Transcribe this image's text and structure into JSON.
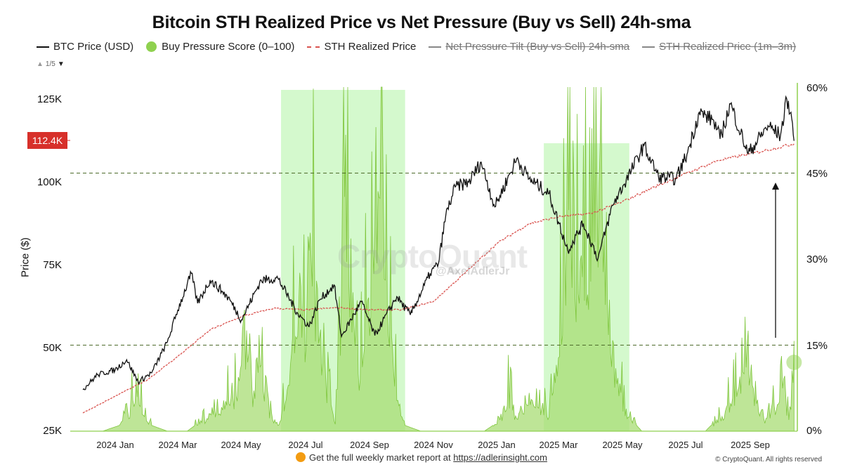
{
  "chart_data": {
    "type": "line",
    "title": "Bitcoin STH Realized Price vs Net Pressure (Buy vs Sell) 24h-sma",
    "ylabel": "Price ($)",
    "ylim": [
      25000,
      125000
    ],
    "y2lim": [
      0,
      60
    ],
    "yticks_left": [
      "125K",
      "100K",
      "75K",
      "50K",
      "25K"
    ],
    "yticks_right": [
      "60%",
      "45%",
      "30%",
      "15%",
      "0%"
    ],
    "xticks": [
      "2024 Jan",
      "2024 Mar",
      "2024 May",
      "2024 Jul",
      "2024 Sep",
      "2024 Nov",
      "2025 Jan",
      "2025 Mar",
      "2025 May",
      "2025 Jul",
      "2025 Sep"
    ],
    "current_price_label": "112.4K",
    "legend": [
      {
        "label": "BTC Price (USD)",
        "type": "line",
        "color": "#111111",
        "visible": true
      },
      {
        "label": "Buy Pressure Score (0–100)",
        "type": "dot",
        "color": "#8fd14f",
        "visible": true
      },
      {
        "label": "STH Realized Price",
        "type": "dashed",
        "color": "#d9534f",
        "visible": true
      },
      {
        "label": "Net Pressure Tilt (Buy vs Sell) 24h-sma",
        "type": "line",
        "color": "#888888",
        "visible": false
      },
      {
        "label": "STH Realized Price (1m–3m)",
        "type": "line",
        "color": "#888888",
        "visible": false
      }
    ],
    "reference_lines_right_pct": [
      45,
      15
    ],
    "highlight_ranges": [
      [
        "2024-06-08",
        "2024-10-05"
      ],
      [
        "2025-02-15",
        "2025-05-08"
      ]
    ],
    "series": [
      {
        "name": "BTC Price (USD)",
        "axis": "left",
        "points": [
          [
            "2023-12-01",
            37500
          ],
          [
            "2023-12-15",
            42000
          ],
          [
            "2024-01-01",
            43500
          ],
          [
            "2024-01-12",
            46500
          ],
          [
            "2024-01-23",
            39800
          ],
          [
            "2024-02-05",
            42600
          ],
          [
            "2024-02-20",
            51800
          ],
          [
            "2024-03-01",
            61500
          ],
          [
            "2024-03-14",
            72500
          ],
          [
            "2024-03-20",
            63500
          ],
          [
            "2024-04-01",
            70500
          ],
          [
            "2024-04-13",
            67000
          ],
          [
            "2024-04-20",
            64500
          ],
          [
            "2024-05-01",
            58500
          ],
          [
            "2024-05-20",
            70500
          ],
          [
            "2024-06-05",
            71000
          ],
          [
            "2024-06-24",
            60500
          ],
          [
            "2024-07-05",
            56500
          ],
          [
            "2024-07-15",
            64500
          ],
          [
            "2024-07-29",
            69000
          ],
          [
            "2024-08-05",
            53500
          ],
          [
            "2024-08-24",
            64000
          ],
          [
            "2024-09-06",
            53800
          ],
          [
            "2024-09-27",
            65500
          ],
          [
            "2024-10-10",
            60000
          ],
          [
            "2024-10-29",
            72500
          ],
          [
            "2024-11-06",
            75500
          ],
          [
            "2024-11-13",
            90000
          ],
          [
            "2024-11-22",
            98500
          ],
          [
            "2024-12-05",
            100000
          ],
          [
            "2024-12-17",
            106000
          ],
          [
            "2024-12-30",
            92500
          ],
          [
            "2025-01-20",
            107000
          ],
          [
            "2025-02-01",
            101000
          ],
          [
            "2025-02-20",
            96500
          ],
          [
            "2025-03-10",
            79500
          ],
          [
            "2025-03-25",
            87500
          ],
          [
            "2025-04-08",
            77000
          ],
          [
            "2025-04-22",
            93000
          ],
          [
            "2025-05-10",
            103500
          ],
          [
            "2025-05-22",
            111000
          ],
          [
            "2025-06-05",
            101500
          ],
          [
            "2025-06-22",
            101000
          ],
          [
            "2025-07-03",
            109000
          ],
          [
            "2025-07-14",
            121000
          ],
          [
            "2025-07-28",
            118500
          ],
          [
            "2025-08-03",
            113000
          ],
          [
            "2025-08-13",
            123500
          ],
          [
            "2025-08-30",
            108500
          ],
          [
            "2025-09-18",
            117000
          ],
          [
            "2025-09-30",
            114000
          ],
          [
            "2025-10-06",
            125000
          ],
          [
            "2025-10-10",
            121000
          ],
          [
            "2025-10-13",
            112400
          ]
        ]
      },
      {
        "name": "STH Realized Price",
        "axis": "left",
        "points": [
          [
            "2023-12-01",
            30500
          ],
          [
            "2024-01-01",
            35500
          ],
          [
            "2024-02-01",
            40500
          ],
          [
            "2024-03-01",
            47500
          ],
          [
            "2024-04-01",
            55500
          ],
          [
            "2024-05-01",
            59500
          ],
          [
            "2024-06-01",
            62000
          ],
          [
            "2024-07-01",
            61500
          ],
          [
            "2024-08-01",
            62200
          ],
          [
            "2024-09-01",
            61500
          ],
          [
            "2024-10-01",
            61500
          ],
          [
            "2024-11-01",
            64000
          ],
          [
            "2024-12-01",
            72500
          ],
          [
            "2025-01-01",
            81500
          ],
          [
            "2025-02-01",
            87500
          ],
          [
            "2025-03-01",
            89500
          ],
          [
            "2025-04-01",
            90500
          ],
          [
            "2025-05-01",
            94000
          ],
          [
            "2025-06-01",
            98500
          ],
          [
            "2025-07-01",
            102500
          ],
          [
            "2025-08-01",
            106500
          ],
          [
            "2025-09-01",
            108500
          ],
          [
            "2025-10-13",
            111500
          ]
        ]
      },
      {
        "name": "Buy Pressure Score (0–100)",
        "axis": "right",
        "points": [
          [
            "2023-12-01",
            0
          ],
          [
            "2023-12-20",
            0
          ],
          [
            "2024-01-05",
            1
          ],
          [
            "2024-01-15",
            4
          ],
          [
            "2024-01-22",
            9
          ],
          [
            "2024-01-28",
            3
          ],
          [
            "2024-02-05",
            1
          ],
          [
            "2024-02-20",
            0
          ],
          [
            "2024-03-10",
            0
          ],
          [
            "2024-03-25",
            2
          ],
          [
            "2024-04-10",
            4
          ],
          [
            "2024-04-18",
            8
          ],
          [
            "2024-04-22",
            5
          ],
          [
            "2024-05-01",
            12
          ],
          [
            "2024-05-06",
            18
          ],
          [
            "2024-05-12",
            7
          ],
          [
            "2024-05-20",
            12
          ],
          [
            "2024-05-28",
            4
          ],
          [
            "2024-06-05",
            1
          ],
          [
            "2024-06-15",
            8
          ],
          [
            "2024-06-24",
            28
          ],
          [
            "2024-07-01",
            20
          ],
          [
            "2024-07-06",
            45
          ],
          [
            "2024-07-10",
            30
          ],
          [
            "2024-07-20",
            10
          ],
          [
            "2024-07-30",
            2
          ],
          [
            "2024-08-05",
            25
          ],
          [
            "2024-08-08",
            58
          ],
          [
            "2024-08-14",
            30
          ],
          [
            "2024-08-22",
            12
          ],
          [
            "2024-09-06",
            35
          ],
          [
            "2024-09-10",
            45
          ],
          [
            "2024-09-16",
            30
          ],
          [
            "2024-09-25",
            10
          ],
          [
            "2024-10-05",
            1
          ],
          [
            "2024-10-20",
            0
          ],
          [
            "2024-12-20",
            0
          ],
          [
            "2025-01-05",
            2
          ],
          [
            "2025-01-12",
            8
          ],
          [
            "2025-01-18",
            3
          ],
          [
            "2025-02-01",
            6
          ],
          [
            "2025-02-12",
            5
          ],
          [
            "2025-02-20",
            3
          ],
          [
            "2025-02-28",
            15
          ],
          [
            "2025-03-05",
            28
          ],
          [
            "2025-03-10",
            40
          ],
          [
            "2025-03-18",
            30
          ],
          [
            "2025-03-30",
            35
          ],
          [
            "2025-04-08",
            50
          ],
          [
            "2025-04-15",
            30
          ],
          [
            "2025-04-25",
            12
          ],
          [
            "2025-05-05",
            3
          ],
          [
            "2025-05-20",
            0
          ],
          [
            "2025-07-20",
            0
          ],
          [
            "2025-08-05",
            3
          ],
          [
            "2025-08-20",
            8
          ],
          [
            "2025-08-30",
            13
          ],
          [
            "2025-09-05",
            6
          ],
          [
            "2025-09-15",
            2
          ],
          [
            "2025-09-25",
            5
          ],
          [
            "2025-10-01",
            10
          ],
          [
            "2025-10-06",
            3
          ],
          [
            "2025-10-10",
            4
          ],
          [
            "2025-10-13",
            12
          ]
        ]
      }
    ]
  },
  "page": {
    "watermark": "CryptoQuant",
    "watermark_handle": "@AxelAdlerJr",
    "pager": "1/5",
    "footer_text": "Get the full weekly market report at",
    "footer_link": "https://adlerinsight.com",
    "copyright": "© CryptoQuant. All rights reserved"
  }
}
